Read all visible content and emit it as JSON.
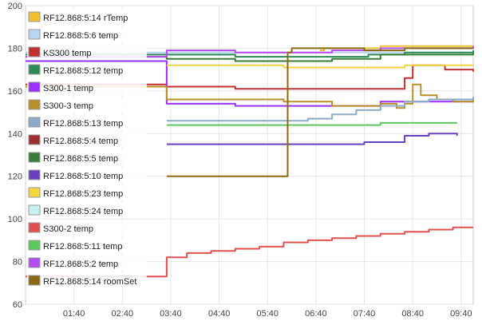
{
  "chart_data": {
    "type": "line",
    "title": "",
    "xlabel": "",
    "ylabel": "",
    "ylim": [
      60,
      200
    ],
    "yticks": [
      60,
      80,
      100,
      120,
      140,
      160,
      180,
      200
    ],
    "xlim": [
      "00:40",
      "09:55"
    ],
    "xticks": [
      "01:40",
      "02:40",
      "03:40",
      "04:40",
      "05:40",
      "06:40",
      "07:40",
      "08:40",
      "09:40"
    ],
    "grid": "on",
    "legend_position": "left",
    "series": [
      {
        "name": "RF12.868:5:14 rTemp",
        "color": "#f0c030",
        "x": [
          "03:35",
          "06:45",
          "06:50",
          "07:30",
          "08:00",
          "09:55"
        ],
        "y": [
          null,
          179,
          180,
          180,
          181,
          180
        ]
      },
      {
        "name": "RF12.868:5:6 temp",
        "color": "#b7d4f0",
        "x": [
          "00:40",
          "09:55"
        ],
        "y": [
          178,
          178
        ]
      },
      {
        "name": "KS300 temp",
        "color": "#c03030",
        "x": [
          "00:40",
          "03:35",
          "05:00",
          "06:00",
          "08:20",
          "08:30",
          "08:40",
          "08:55",
          "09:20",
          "09:55"
        ],
        "y": [
          163,
          162,
          161,
          161,
          161,
          166,
          172,
          172,
          170,
          169
        ]
      },
      {
        "name": "RF12.868:5:12 temp",
        "color": "#2e8b57",
        "x": [
          "00:40",
          "03:35",
          "05:00",
          "06:00",
          "07:00",
          "07:45",
          "08:30",
          "09:00",
          "09:55"
        ],
        "y": [
          177,
          177,
          176,
          176,
          176,
          177,
          178,
          178,
          179
        ]
      },
      {
        "name": "S300-1 temp",
        "color": "#9b30ff",
        "x": [
          "00:40",
          "03:35",
          "05:00",
          "07:30",
          "08:00",
          "09:55"
        ],
        "y": [
          174,
          154,
          153,
          153,
          155,
          157
        ]
      },
      {
        "name": "S300-3 temp",
        "color": "#b8902a",
        "x": [
          "00:40",
          "03:35",
          "06:00",
          "07:00",
          "07:45",
          "08:00",
          "08:20",
          "08:30",
          "08:40",
          "08:50",
          "09:10",
          "09:30",
          "09:55"
        ],
        "y": [
          162,
          156,
          155,
          153,
          153,
          154,
          152,
          154,
          163,
          158,
          156,
          155,
          157
        ]
      },
      {
        "name": "RF12.868:5:13 temp",
        "color": "#8aaac8",
        "x": [
          "03:35",
          "05:00",
          "05:40",
          "06:30",
          "07:00",
          "07:30",
          "08:00",
          "08:30",
          "09:00",
          "09:55"
        ],
        "y": [
          146,
          146,
          146,
          147,
          149,
          151,
          153,
          155,
          156,
          157
        ]
      },
      {
        "name": "RF12.868:5:4 temp",
        "color": "#9b2f2f",
        "x": [
          "00:40",
          "09:55"
        ],
        "y": [
          null,
          null
        ]
      },
      {
        "name": "RF12.868:5:5 temp",
        "color": "#3a7d3a",
        "x": [
          "00:40",
          "03:35",
          "05:00",
          "07:00",
          "08:00",
          "09:55"
        ],
        "y": [
          176,
          175,
          174,
          175,
          177,
          178
        ]
      },
      {
        "name": "RF12.868:5:10 temp",
        "color": "#6a3fc0",
        "x": [
          "03:35",
          "06:00",
          "07:25",
          "07:40",
          "08:00",
          "08:30",
          "09:00",
          "09:35"
        ],
        "y": [
          135,
          135,
          135,
          136,
          136,
          139,
          140,
          139
        ]
      },
      {
        "name": "RF12.868:5:23 temp",
        "color": "#f5d442",
        "x": [
          "03:35",
          "06:00",
          "07:30",
          "08:30",
          "09:55"
        ],
        "y": [
          172,
          171,
          171,
          172,
          172
        ]
      },
      {
        "name": "RF12.868:5:24 temp",
        "color": "#c8f0f0",
        "x": [
          "00:40",
          "09:55"
        ],
        "y": [
          null,
          null
        ]
      },
      {
        "name": "S300-2 temp",
        "color": "#e05050",
        "x": [
          "00:40",
          "03:35",
          "04:00",
          "04:30",
          "05:00",
          "05:30",
          "06:00",
          "06:30",
          "07:00",
          "07:30",
          "08:00",
          "08:30",
          "09:00",
          "09:30",
          "09:55"
        ],
        "y": [
          73,
          82,
          84,
          85,
          86,
          87,
          89,
          90,
          91,
          92,
          93,
          94,
          95,
          96,
          96
        ]
      },
      {
        "name": "RF12.868:5:11 temp",
        "color": "#5cc85c",
        "x": [
          "03:35",
          "06:00",
          "07:00",
          "08:00",
          "09:35"
        ],
        "y": [
          144,
          144,
          144,
          145,
          145
        ]
      },
      {
        "name": "RF12.868:5:2 temp",
        "color": "#b24cf0",
        "x": [
          "00:40",
          "03:35",
          "05:00",
          "06:00",
          "07:00",
          "08:00",
          "09:55"
        ],
        "y": [
          176,
          179,
          178,
          178,
          179,
          180,
          181
        ]
      },
      {
        "name": "RF12.868:5:14 roomSet",
        "color": "#8b6914",
        "x": [
          "03:35",
          "06:00",
          "06:05",
          "06:10",
          "07:30",
          "07:40",
          "08:30",
          "09:55"
        ],
        "y": [
          120,
          120,
          178,
          180,
          180,
          179,
          180,
          180
        ]
      }
    ]
  }
}
